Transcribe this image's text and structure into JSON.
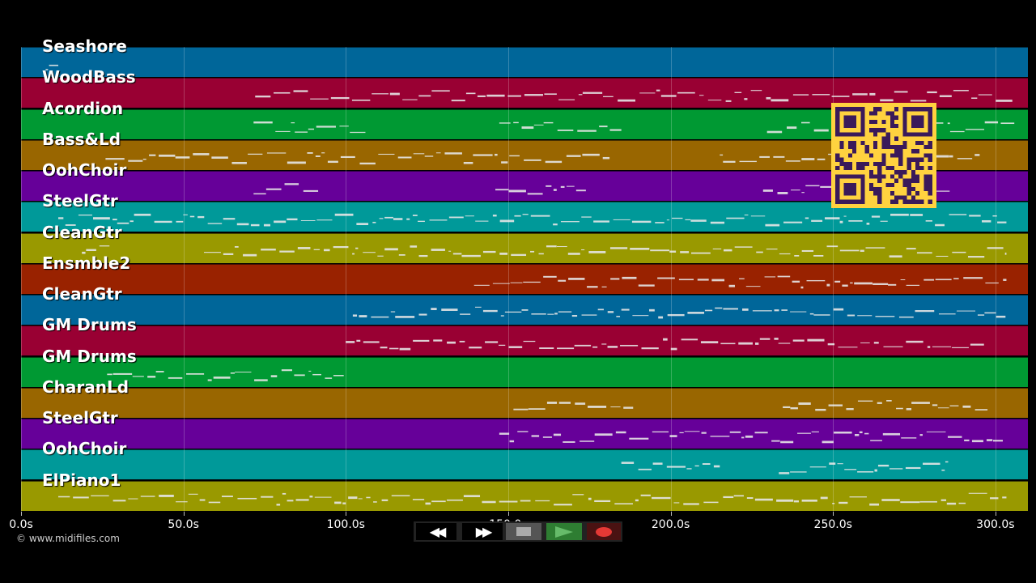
{
  "tracks": [
    {
      "name": "Seashore",
      "color": "#006699"
    },
    {
      "name": "WoodBass",
      "color": "#990033"
    },
    {
      "name": "Acordion",
      "color": "#009933"
    },
    {
      "name": "Bass&Ld",
      "color": "#996600"
    },
    {
      "name": "OohChoir",
      "color": "#660099"
    },
    {
      "name": "SteelGtr",
      "color": "#009999"
    },
    {
      "name": "CleanGtr",
      "color": "#999900"
    },
    {
      "name": "Ensmble2",
      "color": "#992200"
    },
    {
      "name": "CleanGtr",
      "color": "#006699"
    },
    {
      "name": "GM Drums",
      "color": "#990033"
    },
    {
      "name": "GM Drums",
      "color": "#009933"
    },
    {
      "name": "CharanLd",
      "color": "#996600"
    },
    {
      "name": "SteelGtr",
      "color": "#660099"
    },
    {
      "name": "OohChoir",
      "color": "#009999"
    },
    {
      "name": "ElPiano1",
      "color": "#999900"
    }
  ],
  "time_axis": {
    "ticks": [
      "0.0s",
      "50.0s",
      "100.0s",
      "150.0s",
      "200.0s",
      "250.0s",
      "300.0s"
    ],
    "tick_seconds": [
      0,
      50,
      100,
      150,
      200,
      250,
      300
    ],
    "max_seconds": 310
  },
  "copyright": "© www.midifiles.com",
  "transport": {
    "rewind_icon": "rewind-icon",
    "fast_forward_icon": "fast-forward-icon",
    "stop_icon": "stop-icon",
    "play_icon": "play-icon",
    "record_icon": "record-icon",
    "play_color": "#2e7d32",
    "record_color": "#e53935"
  },
  "qr_code": {
    "color": "#ffd23f",
    "dark": "#3a1a5a"
  }
}
